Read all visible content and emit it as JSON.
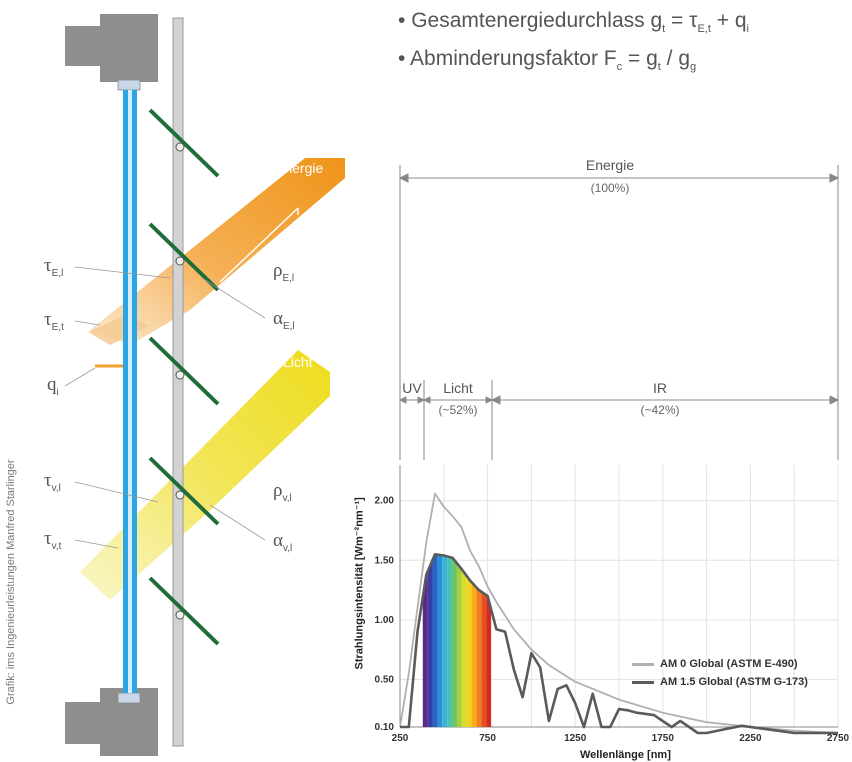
{
  "bullets": [
    {
      "text": "Gesamtenergiedurchlass g",
      "sub1": "t",
      "mid": " = τ",
      "sub2": "E,t",
      "mid2": " + q",
      "sub3": "i",
      "tail": ""
    },
    {
      "text": "Abminderungsfaktor F",
      "sub1": "c",
      "mid": " = g",
      "sub2": "t",
      "mid2": " / g",
      "sub3": "g",
      "tail": ""
    }
  ],
  "credit": "Grafik: ims Ingenieurleistungen Manfred Starlinger",
  "beams": {
    "energy": "Energie",
    "light": "Licht"
  },
  "symbols": {
    "tau_el": {
      "base": "τ",
      "sub": "E,l"
    },
    "tau_et": {
      "base": "τ",
      "sub": "E,t"
    },
    "qi": {
      "base": "q",
      "sub": "i"
    },
    "tau_vl": {
      "base": "τ",
      "sub": "v,l"
    },
    "tau_vt": {
      "base": "τ",
      "sub": "v,t"
    },
    "rho_el": {
      "base": "ρ",
      "sub": "E,l"
    },
    "alpha_el": {
      "base": "α",
      "sub": "E,l"
    },
    "rho_vl": {
      "base": "ρ",
      "sub": "v,l"
    },
    "alpha_vl": {
      "base": "α",
      "sub": "v,l"
    }
  },
  "ranges": {
    "energy": {
      "label": "Energie",
      "pct": "(100%)"
    },
    "uv": {
      "label": "UV"
    },
    "light": {
      "label": "Licht",
      "pct": "(~52%)"
    },
    "ir": {
      "label": "IR",
      "pct": "(~42%)"
    }
  },
  "colors": {
    "energy_beam": "#f0a030",
    "light_beam": "#f2e23a",
    "glass": "#3aa8e0",
    "blind": "#1f6e3a",
    "frame": "#9a9a9a",
    "am0": "#b0b0b0",
    "am15": "#5a5a5a"
  },
  "chart_data": {
    "type": "line",
    "title": "",
    "xlabel": "Wellenlänge [nm]",
    "ylabel": "Strahlungsintensität [Wm⁻²nm⁻¹]",
    "xlim": [
      250,
      2750
    ],
    "ylim": [
      0.1,
      2.3
    ],
    "x_ticks": [
      "250",
      "750",
      "1250",
      "1750",
      "2250",
      "2750"
    ],
    "y_ticks": [
      "0.10",
      "0.50",
      "1.00",
      "1.50",
      "2.00"
    ],
    "grid": true,
    "legend": "bottom-right",
    "series": [
      {
        "name": "AM 0 Global (ASTM E-490)",
        "x": [
          250,
          300,
          350,
          400,
          450,
          500,
          550,
          600,
          650,
          700,
          750,
          800,
          900,
          1000,
          1100,
          1250,
          1500,
          1750,
          2000,
          2250,
          2500,
          2750
        ],
        "y": [
          0.1,
          0.55,
          1.1,
          1.65,
          2.06,
          1.95,
          1.87,
          1.78,
          1.58,
          1.45,
          1.28,
          1.15,
          0.92,
          0.75,
          0.62,
          0.48,
          0.33,
          0.22,
          0.14,
          0.1,
          0.07,
          0.05
        ]
      },
      {
        "name": "AM 1.5 Global (ASTM G-173)",
        "x": [
          250,
          300,
          350,
          400,
          450,
          500,
          550,
          600,
          650,
          700,
          750,
          800,
          850,
          900,
          950,
          1000,
          1050,
          1100,
          1150,
          1200,
          1250,
          1300,
          1350,
          1400,
          1450,
          1500,
          1550,
          1600,
          1700,
          1800,
          1850,
          1900,
          1950,
          2000,
          2100,
          2200,
          2300,
          2400,
          2500,
          2600,
          2700,
          2750
        ],
        "y": [
          0.1,
          0.1,
          0.9,
          1.38,
          1.55,
          1.54,
          1.52,
          1.43,
          1.33,
          1.25,
          1.2,
          0.92,
          0.9,
          0.58,
          0.35,
          0.72,
          0.6,
          0.15,
          0.42,
          0.45,
          0.3,
          0.1,
          0.38,
          0.1,
          0.1,
          0.25,
          0.24,
          0.22,
          0.2,
          0.1,
          0.15,
          0.1,
          0.05,
          0.05,
          0.08,
          0.11,
          0.09,
          0.07,
          0.05,
          0.03,
          0.03,
          0.02
        ]
      }
    ]
  }
}
